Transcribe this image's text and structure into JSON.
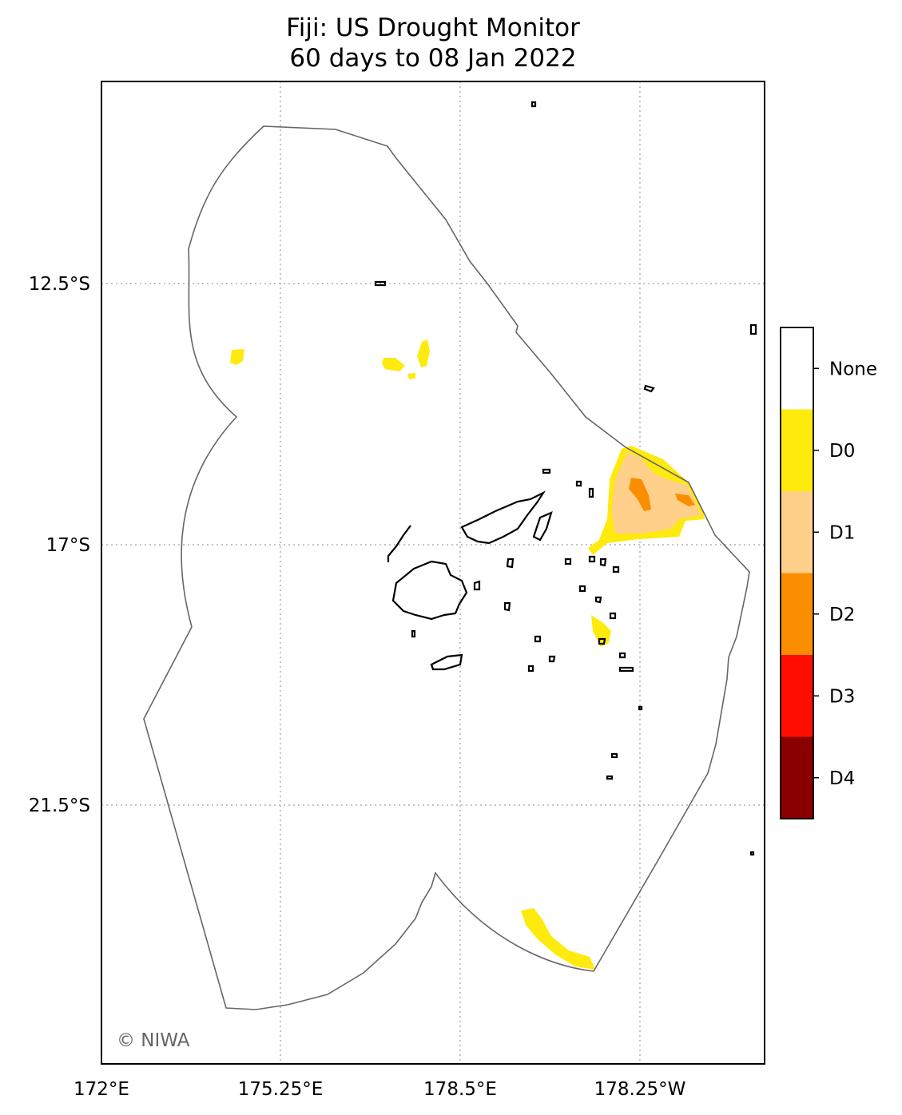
{
  "title": "Fiji: US Drought Monitor",
  "subtitle": "60 days to 08 Jan 2022",
  "map": {
    "x_ticks": [
      "172°E",
      "175.25°E",
      "178.5°E",
      "178.25°W"
    ],
    "y_ticks": [
      "12.5°S",
      "17°S",
      "21.5°S"
    ],
    "copyright": "© NIWA",
    "gridlines": true
  },
  "legend": {
    "categories": [
      {
        "label": "None",
        "color": "#ffffff"
      },
      {
        "label": "D0",
        "color": "#ffea0e"
      },
      {
        "label": "D1",
        "color": "#ffd08a"
      },
      {
        "label": "D2",
        "color": "#fb8d00"
      },
      {
        "label": "D3",
        "color": "#ff0d00"
      },
      {
        "label": "D4",
        "color": "#8a0000"
      }
    ]
  },
  "colors": {
    "eez_outline": "#666666",
    "coastline": "#000000",
    "gridline": "#b0b0b0"
  }
}
